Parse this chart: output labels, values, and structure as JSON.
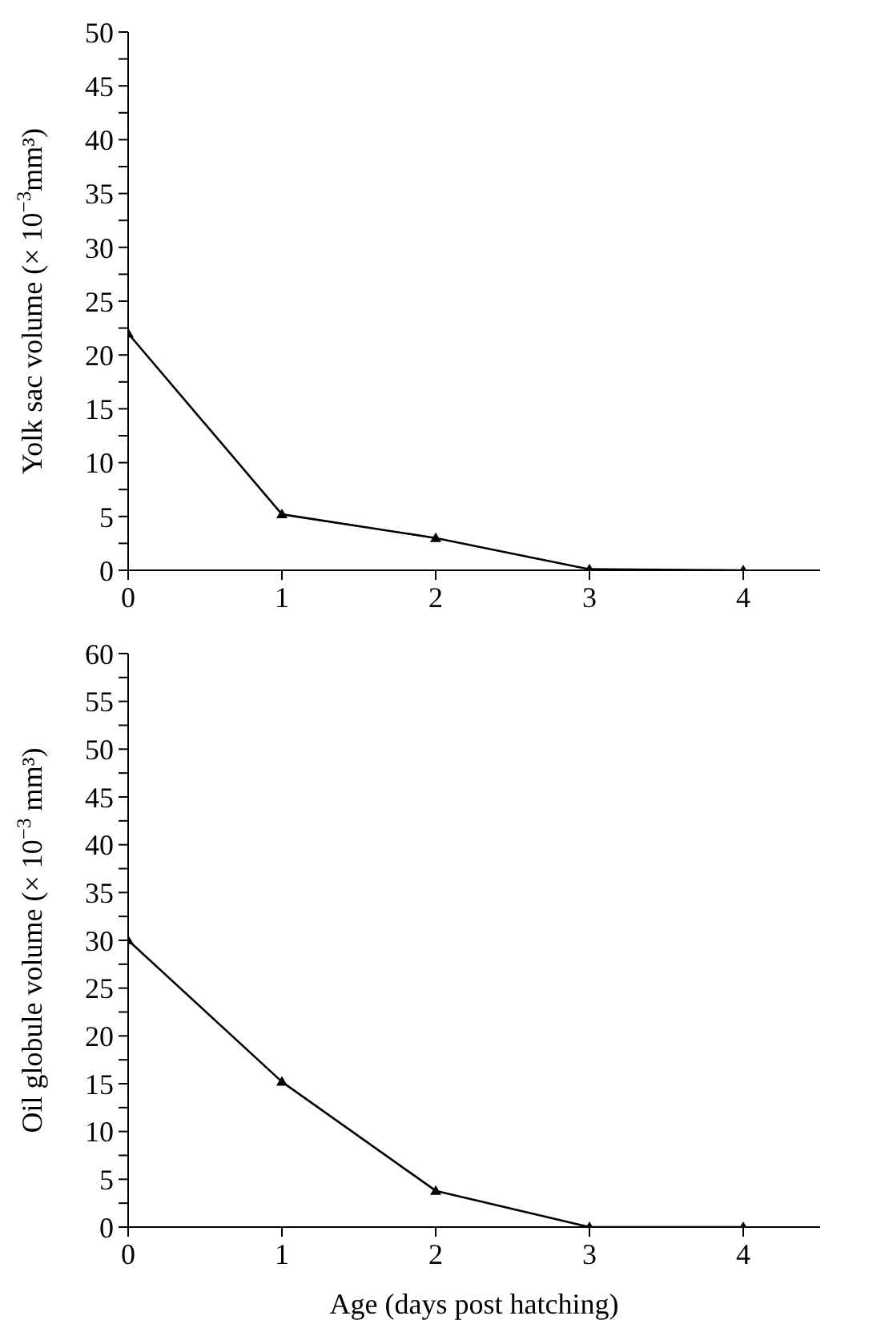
{
  "chart_data": [
    {
      "type": "line",
      "ylabel": "Yolk sac volume (× 10$^{−3}$mm³)",
      "x": [
        0,
        1,
        2,
        3,
        4
      ],
      "series": [
        {
          "color": "#000000",
          "values": [
            22,
            5.2,
            3,
            0.1,
            0
          ]
        }
      ],
      "xlim": [
        0,
        4.5
      ],
      "xticks": [
        0,
        1,
        2,
        3,
        4
      ],
      "ylim": [
        0,
        50
      ],
      "yticks": [
        0,
        {
          "value": 2.5,
          "label": null
        },
        5,
        {
          "value": 7.5,
          "label": null
        },
        10,
        {
          "value": 12.5,
          "label": null
        },
        15,
        {
          "value": 17.5,
          "label": null
        },
        20,
        {
          "value": 22.5,
          "label": null
        },
        25,
        {
          "value": 27.5,
          "label": null
        },
        30,
        {
          "value": 32.5,
          "label": null
        },
        35,
        {
          "value": 37.5,
          "label": null
        },
        40,
        {
          "value": 42.5,
          "label": null
        },
        45,
        {
          "value": 47.5,
          "label": null
        },
        50
      ],
      "marker": "triangle",
      "line_style": "solid"
    },
    {
      "type": "line",
      "xlabel": "Age (days post hatching)",
      "ylabel": "Oil globule volume (× 10$^{−3}$ mm³)",
      "x": [
        0,
        1,
        2,
        3,
        4
      ],
      "series": [
        {
          "color": "#000000",
          "values": [
            30,
            15.2,
            3.8,
            0,
            0
          ]
        }
      ],
      "xlim": [
        0,
        4.5
      ],
      "xticks": [
        0,
        1,
        2,
        3,
        4
      ],
      "ylim": [
        0,
        60
      ],
      "yticks": [
        0,
        {
          "value": 2.5,
          "label": null
        },
        5,
        {
          "value": 7.5,
          "label": null
        },
        10,
        {
          "value": 12.5,
          "label": null
        },
        15,
        {
          "value": 17.5,
          "label": null
        },
        20,
        {
          "value": 22.5,
          "label": null
        },
        25,
        {
          "value": 27.5,
          "label": null
        },
        30,
        {
          "value": 32.5,
          "label": null
        },
        35,
        {
          "value": 37.5,
          "label": null
        },
        40,
        {
          "value": 42.5,
          "label": null
        },
        45,
        {
          "value": 47.5,
          "label": null
        },
        50,
        {
          "value": 52.5,
          "label": null
        },
        55,
        {
          "value": 57.5,
          "label": null
        },
        60
      ],
      "marker": "triangle",
      "line_style": "solid"
    }
  ]
}
